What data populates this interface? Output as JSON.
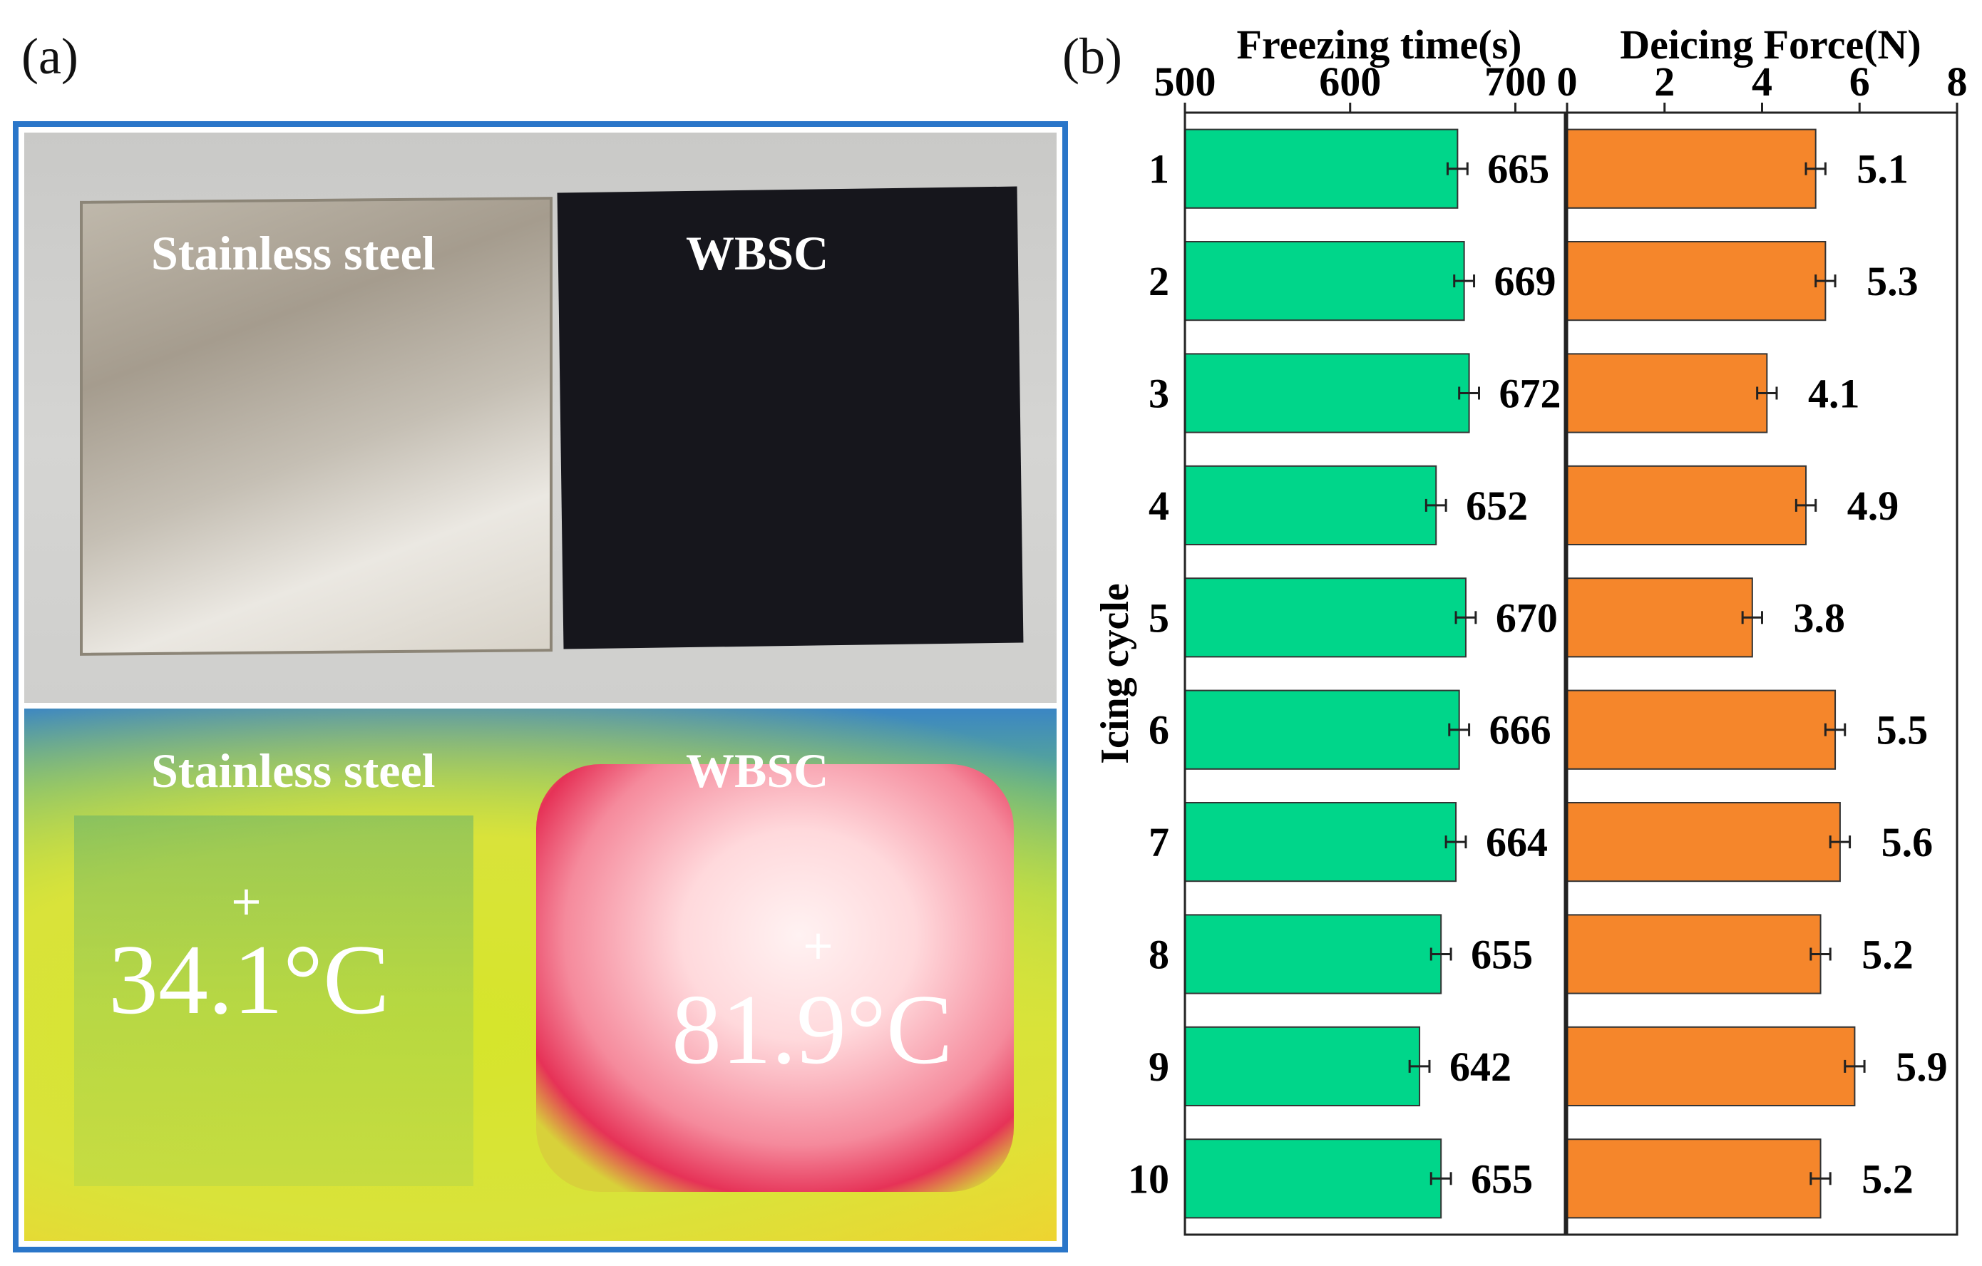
{
  "panels": {
    "a_label": "(a)",
    "b_label": "(b)"
  },
  "photo": {
    "top": {
      "left_label": "Stainless steel",
      "right_label": "WBSC"
    },
    "infrared": {
      "left_label": "Stainless steel",
      "right_label": "WBSC",
      "left_temp": "34.1°C",
      "right_temp": "81.9°C",
      "marker": "+"
    }
  },
  "chart_data": [
    {
      "type": "bar",
      "orientation": "horizontal",
      "title": "Freezing time(s)",
      "ylabel": "Icing cycle",
      "categories": [
        "1",
        "2",
        "3",
        "4",
        "5",
        "6",
        "7",
        "8",
        "9",
        "10"
      ],
      "values": [
        665,
        669,
        672,
        652,
        670,
        666,
        664,
        655,
        642,
        655
      ],
      "value_labels": [
        "665",
        "669",
        "672",
        "652",
        "670",
        "666",
        "664",
        "655",
        "642",
        "655"
      ],
      "error": 6,
      "xlim": [
        500,
        730
      ],
      "ticks": [
        500,
        600,
        700
      ],
      "tick_labels": [
        "500",
        "600",
        "700"
      ],
      "color": "#00d68a"
    },
    {
      "type": "bar",
      "orientation": "horizontal",
      "title": "Deicing Force(N)",
      "categories": [
        "1",
        "2",
        "3",
        "4",
        "5",
        "6",
        "7",
        "8",
        "9",
        "10"
      ],
      "values": [
        5.1,
        5.3,
        4.1,
        4.9,
        3.8,
        5.5,
        5.6,
        5.2,
        5.9,
        5.2
      ],
      "value_labels": [
        "5.1",
        "5.3",
        "4.1",
        "4.9",
        "3.8",
        "5.5",
        "5.6",
        "5.2",
        "5.9",
        "5.2"
      ],
      "error": 0.2,
      "xlim": [
        0,
        8
      ],
      "ticks": [
        0,
        2,
        4,
        6,
        8
      ],
      "tick_labels": [
        "0",
        "2",
        "4",
        "6",
        "8"
      ],
      "color": "#f5862b"
    }
  ]
}
